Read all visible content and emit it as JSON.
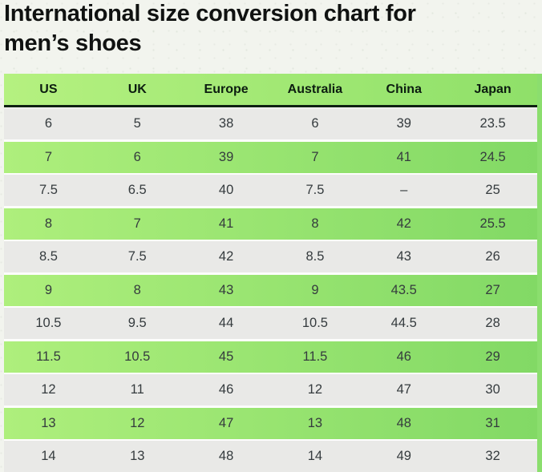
{
  "title_lines": [
    "International size conversion chart for",
    "men’s shoes"
  ],
  "chart_data": {
    "type": "table",
    "title": "International size conversion chart for men’s shoes",
    "columns": [
      "US",
      "UK",
      "Europe",
      "Australia",
      "China",
      "Japan"
    ],
    "rows": [
      [
        "6",
        "5",
        "38",
        "6",
        "39",
        "23.5"
      ],
      [
        "7",
        "6",
        "39",
        "7",
        "41",
        "24.5"
      ],
      [
        "7.5",
        "6.5",
        "40",
        "7.5",
        "–",
        "25"
      ],
      [
        "8",
        "7",
        "41",
        "8",
        "42",
        "25.5"
      ],
      [
        "8.5",
        "7.5",
        "42",
        "8.5",
        "43",
        "26"
      ],
      [
        "9",
        "8",
        "43",
        "9",
        "43.5",
        "27"
      ],
      [
        "10.5",
        "9.5",
        "44",
        "10.5",
        "44.5",
        "28"
      ],
      [
        "11.5",
        "10.5",
        "45",
        "11.5",
        "46",
        "29"
      ],
      [
        "12",
        "11",
        "46",
        "12",
        "47",
        "30"
      ],
      [
        "13",
        "12",
        "47",
        "13",
        "48",
        "31"
      ],
      [
        "14",
        "13",
        "48",
        "14",
        "49",
        "32"
      ]
    ],
    "layout": {
      "zebra_striping": true,
      "first_data_row_color": "gray",
      "alternate_row_color": "green-gradient",
      "header_position": "top"
    }
  },
  "colors": {
    "page_bg": "#f2f4ee",
    "title_color": "#101211",
    "header_green_left": "#b5f180",
    "header_green_right": "#8fe069",
    "header_border": "#0e2012",
    "header_text": "#0c1d10",
    "row_green_left": "#aeef7c",
    "row_green_right": "#82d965",
    "row_gray": "#e9e9e7",
    "cell_text": "#353b3e",
    "gap_white": "#fdfdfc",
    "right_strip": "#8bde6e"
  }
}
